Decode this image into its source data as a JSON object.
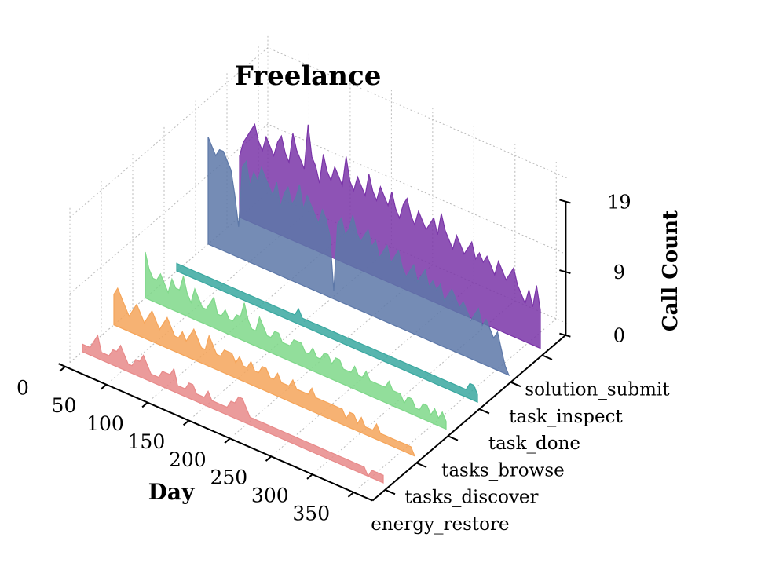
{
  "chart_data": {
    "type": "area",
    "title": "Freelance",
    "xlabel": "Day",
    "zlabel": "Call Count",
    "xlim": [
      0,
      365
    ],
    "zlim": [
      0,
      19
    ],
    "x_ticks": [
      0,
      50,
      100,
      150,
      200,
      250,
      300,
      350
    ],
    "z_ticks": [
      0,
      9,
      19
    ],
    "series": [
      {
        "name": "energy_restore",
        "color": "#e88a8a",
        "values": [
          1,
          1,
          1,
          2,
          3,
          1,
          1,
          1,
          2,
          2,
          3,
          2,
          1,
          1,
          2,
          2,
          3,
          2,
          1,
          1,
          1,
          2,
          2,
          2,
          3,
          1,
          1,
          1,
          2,
          2,
          1,
          1,
          1,
          2,
          1,
          1,
          1,
          1,
          1,
          2,
          2,
          3,
          3,
          2,
          1,
          1,
          1,
          1,
          1,
          1,
          1,
          1,
          1,
          1,
          1,
          1,
          1,
          1,
          1,
          1,
          1,
          1,
          1,
          1,
          1,
          1,
          1,
          1,
          1,
          1,
          1,
          1,
          1,
          1,
          1,
          0,
          1,
          1,
          1,
          1
        ]
      },
      {
        "name": "tasks_discover",
        "color": "#f5a55a",
        "values": [
          4,
          5,
          4,
          3,
          2,
          3,
          4,
          3,
          2,
          3,
          4,
          3,
          2,
          3,
          4,
          3,
          2,
          2,
          3,
          2,
          3,
          4,
          3,
          2,
          2,
          4,
          3,
          2,
          2,
          3,
          3,
          3,
          2,
          3,
          2,
          2,
          3,
          2,
          2,
          3,
          3,
          2,
          2,
          3,
          2,
          2,
          2,
          3,
          2,
          2,
          2,
          2,
          3,
          2,
          2,
          2,
          2,
          2,
          2,
          2,
          2,
          1,
          2,
          2,
          1,
          2,
          1,
          1,
          1,
          2,
          1,
          1,
          1,
          1,
          1,
          1,
          1,
          1,
          1,
          0
        ]
      },
      {
        "name": "tasks_browse",
        "color": "#7fd88a",
        "values": [
          6,
          4,
          3,
          3,
          4,
          3,
          2,
          4,
          3,
          3,
          5,
          3,
          2,
          4,
          3,
          2,
          2,
          3,
          4,
          2,
          2,
          3,
          2,
          2,
          3,
          3,
          5,
          3,
          2,
          2,
          4,
          3,
          2,
          2,
          3,
          3,
          2,
          2,
          2,
          3,
          3,
          3,
          2,
          2,
          3,
          2,
          2,
          3,
          3,
          2,
          3,
          3,
          2,
          2,
          2,
          3,
          2,
          2,
          3,
          2,
          2,
          2,
          2,
          2,
          3,
          2,
          2,
          2,
          1,
          2,
          2,
          1,
          1,
          2,
          2,
          1,
          2,
          1,
          2,
          1
        ]
      },
      {
        "name": "task_done",
        "color": "#3aa8a0",
        "values": [
          1,
          1,
          1,
          1,
          1,
          1,
          1,
          1,
          1,
          1,
          1,
          1,
          1,
          1,
          1,
          1,
          1,
          1,
          1,
          1,
          1,
          1,
          1,
          1,
          1,
          1,
          1,
          1,
          1,
          1,
          1,
          1,
          2,
          1,
          1,
          1,
          1,
          1,
          1,
          1,
          1,
          1,
          1,
          1,
          1,
          1,
          1,
          1,
          1,
          1,
          1,
          1,
          1,
          1,
          1,
          1,
          1,
          1,
          1,
          1,
          1,
          1,
          1,
          1,
          1,
          1,
          1,
          1,
          1,
          1,
          1,
          1,
          1,
          1,
          1,
          1,
          1,
          2,
          2,
          1
        ]
      },
      {
        "name": "task_inspect",
        "color": "#5d78a8",
        "values": [
          14,
          13,
          12,
          13,
          13,
          12,
          11,
          8,
          4,
          12,
          13,
          10,
          12,
          11,
          13,
          12,
          11,
          10,
          12,
          9,
          11,
          12,
          10,
          11,
          13,
          10,
          12,
          11,
          10,
          9,
          11,
          10,
          8,
          1,
          10,
          11,
          9,
          10,
          12,
          10,
          9,
          10,
          11,
          9,
          10,
          8,
          9,
          10,
          8,
          9,
          10,
          8,
          7,
          8,
          9,
          7,
          8,
          9,
          7,
          8,
          7,
          8,
          6,
          7,
          8,
          7,
          6,
          7,
          6,
          5,
          6,
          7,
          5,
          6,
          5,
          4,
          5,
          3,
          1,
          0
        ]
      },
      {
        "name": "solution_submit",
        "color": "#7a35a8",
        "values": [
          8,
          10,
          11,
          12,
          13,
          11,
          10,
          12,
          11,
          10,
          12,
          13,
          11,
          10,
          14,
          12,
          11,
          10,
          16,
          12,
          11,
          9,
          13,
          11,
          10,
          12,
          11,
          10,
          14,
          11,
          10,
          12,
          11,
          10,
          13,
          11,
          10,
          12,
          11,
          10,
          12,
          10,
          9,
          11,
          12,
          10,
          9,
          11,
          10,
          9,
          10,
          11,
          9,
          12,
          10,
          9,
          8,
          10,
          9,
          8,
          9,
          10,
          8,
          9,
          8,
          9,
          8,
          7,
          9,
          8,
          7,
          8,
          9,
          7,
          6,
          5,
          7,
          5,
          8,
          5
        ]
      }
    ]
  }
}
